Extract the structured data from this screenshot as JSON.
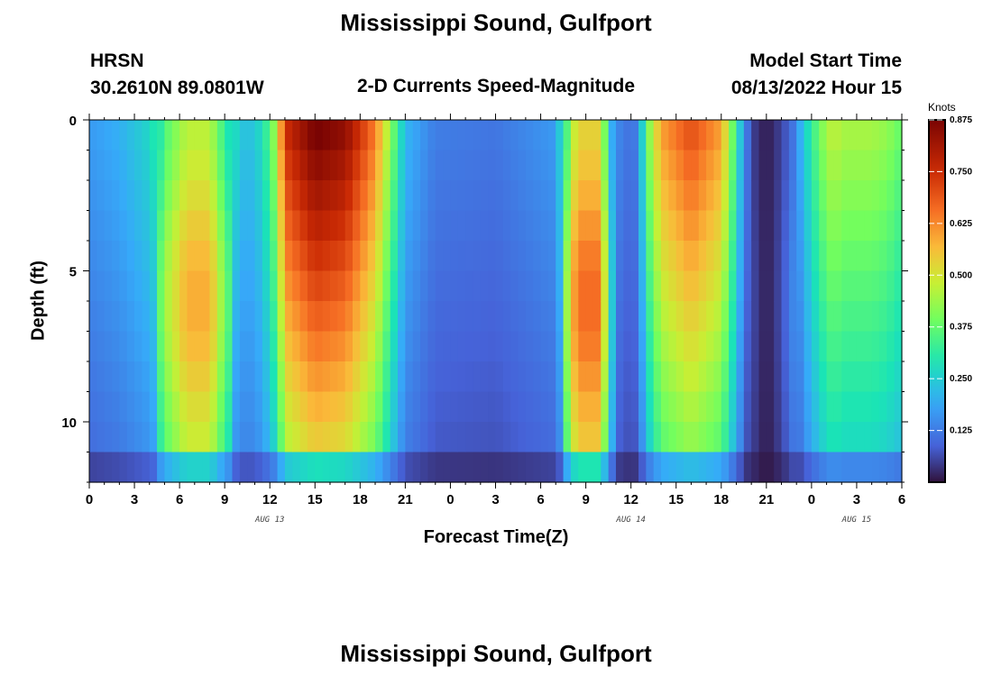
{
  "title": "Mississippi Sound, Gulfport",
  "station": "HRSN",
  "coords": "30.2610N  89.0801W",
  "subtitle": "2-D Currents Speed-Magnitude",
  "model_label": "Model Start Time",
  "model_time": "08/13/2022 Hour 15",
  "footer_title": "Mississippi Sound, Gulfport",
  "chart_data": {
    "type": "heatmap",
    "title": "Mississippi Sound, Gulfport",
    "subtitle": "2-D Currents Speed-Magnitude",
    "xlabel": "Forecast Time(Z)",
    "ylabel": "Depth (ft)",
    "x_tick_labels": [
      "0",
      "3",
      "6",
      "9",
      "12",
      "15",
      "18",
      "21",
      "0",
      "3",
      "6",
      "9",
      "12",
      "15",
      "18",
      "21",
      "0",
      "3",
      "6"
    ],
    "date_labels": [
      {
        "text": "AUG 13",
        "hour": 12
      },
      {
        "text": "AUG 14",
        "hour": 36
      },
      {
        "text": "AUG 15",
        "hour": 51
      }
    ],
    "xlim": [
      0,
      54
    ],
    "ylim": [
      0,
      12
    ],
    "y_ticks": [
      0,
      5,
      10
    ],
    "colorbar": {
      "label": "Knots",
      "ticks": [
        "0.875",
        "0.750",
        "0.625",
        "0.500",
        "0.375",
        "0.250",
        "0.125"
      ],
      "range": [
        0,
        0.875
      ]
    },
    "speed_profile": {
      "hours": [
        0,
        2,
        4,
        4.5,
        5,
        6.5,
        8,
        9,
        10,
        11,
        12,
        12.5,
        13,
        15,
        17,
        19,
        20,
        21,
        23,
        27,
        31,
        31.5,
        32,
        32.5,
        33,
        34,
        34.5,
        35,
        36,
        36.5,
        37,
        38,
        40,
        42,
        43,
        43.5,
        44,
        45,
        46,
        47,
        48,
        49,
        49.5,
        50,
        52,
        53,
        54
      ],
      "knots": [
        0.16,
        0.19,
        0.25,
        0.3,
        0.4,
        0.53,
        0.53,
        0.36,
        0.22,
        0.22,
        0.33,
        0.45,
        0.7,
        0.83,
        0.79,
        0.6,
        0.4,
        0.2,
        0.12,
        0.11,
        0.16,
        0.3,
        0.5,
        0.6,
        0.6,
        0.6,
        0.3,
        0.14,
        0.1,
        0.13,
        0.35,
        0.56,
        0.66,
        0.56,
        0.3,
        0.15,
        0.06,
        0.01,
        0.06,
        0.15,
        0.3,
        0.42,
        0.45,
        0.42,
        0.42,
        0.4,
        0.35
      ]
    }
  }
}
